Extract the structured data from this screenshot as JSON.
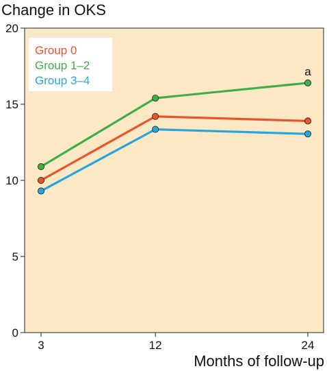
{
  "chart_data": {
    "type": "line",
    "title": "",
    "ylabel": "Change in OKS",
    "xlabel": "Months of follow-up",
    "x": [
      3,
      12,
      24
    ],
    "x_ticks": [
      "3",
      "12",
      "24"
    ],
    "ylim": [
      0,
      20
    ],
    "y_ticks": [
      "0",
      "5",
      "10",
      "15",
      "20"
    ],
    "grid": false,
    "plot_background": "#fce8c4",
    "legend_position": "top-left",
    "series": [
      {
        "name": "Group 0",
        "color": "#e8552a",
        "values": [
          10.0,
          14.2,
          13.9
        ]
      },
      {
        "name": "Group 1–2",
        "color": "#3fae49",
        "values": [
          10.9,
          15.4,
          16.4
        ]
      },
      {
        "name": "Group 3–4",
        "color": "#27a6de",
        "values": [
          9.3,
          13.35,
          13.05
        ]
      }
    ],
    "annotations": [
      {
        "text": "a",
        "x": 24,
        "y": 16.4,
        "series": "Group 1–2"
      }
    ]
  }
}
